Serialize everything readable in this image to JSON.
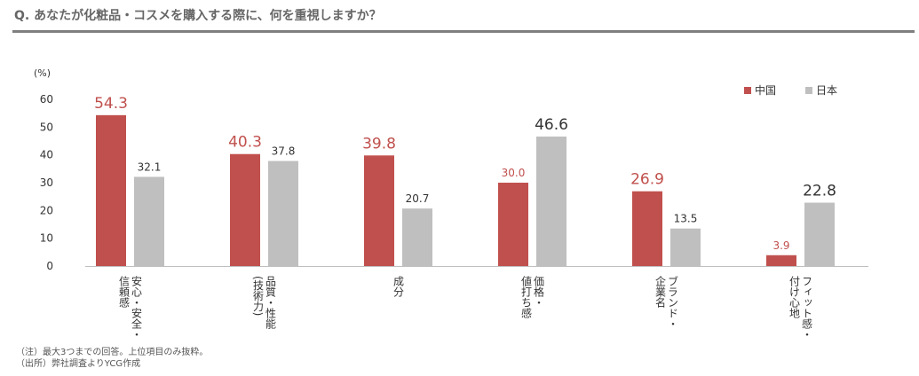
{
  "header": {
    "title": "Q. あなたが化粧品・コスメを購入する際に、何を重視しますか？"
  },
  "notes": [
    "（注）最大3つまでの回答。上位項目のみ抜粋。",
    "（出所）弊社調査よりYCG作成"
  ],
  "colors": {
    "china": "#c0504d",
    "japan": "#bfbfbf",
    "highlight_label": "#c0504d",
    "axis": "#bfbfbf"
  },
  "chart_data": {
    "type": "bar",
    "title": "",
    "ylabel": "(%)",
    "xlabel": "",
    "ylim": [
      0,
      60
    ],
    "yticks": [
      0,
      10,
      20,
      30,
      40,
      50,
      60
    ],
    "grid": false,
    "legend_position": "top-right",
    "categories": [
      [
        "安心・安全・",
        "信頼感"
      ],
      [
        "品質・性能",
        "(技術力)"
      ],
      [
        "成分"
      ],
      [
        "価格・",
        "値打ち感"
      ],
      [
        "ブランド・",
        "企業名"
      ],
      [
        "フィット感・",
        "付け心地"
      ]
    ],
    "series": [
      {
        "name": "中国",
        "values": [
          54.3,
          40.3,
          39.8,
          30.0,
          26.9,
          3.9
        ]
      },
      {
        "name": "日本",
        "values": [
          32.1,
          37.8,
          20.7,
          46.6,
          13.5,
          22.8
        ]
      }
    ]
  }
}
